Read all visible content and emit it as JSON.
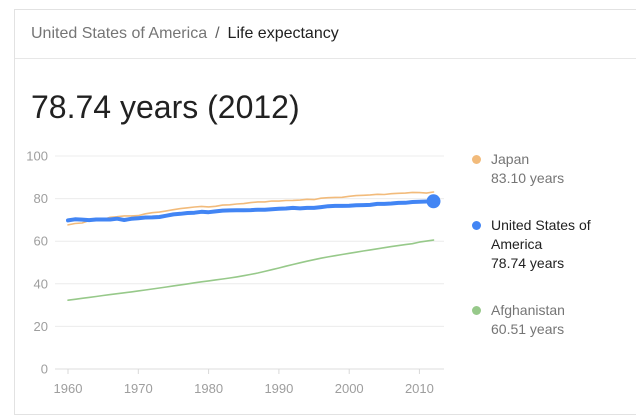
{
  "page": {
    "breadcrumb": {
      "parent": "United States of America",
      "separator": "/",
      "current": "Life expectancy"
    },
    "title": "78.74 years (2012)"
  },
  "legend": {
    "items": [
      {
        "name": "Japan",
        "value": "83.10 years",
        "color": "#f2bb7b",
        "emphasis": false
      },
      {
        "name": "United States of America",
        "value": "78.74 years",
        "color": "#4285f4",
        "emphasis": true
      },
      {
        "name": "Afghanistan",
        "value": "60.51 years",
        "color": "#97c98a",
        "emphasis": false
      }
    ]
  },
  "chart_data": {
    "type": "line",
    "xlabel": "",
    "ylabel": "",
    "ylim": [
      0,
      100
    ],
    "yticks": [
      0,
      20,
      40,
      60,
      80,
      100
    ],
    "xticks": [
      1960,
      1970,
      1980,
      1990,
      2000,
      2010
    ],
    "grid": true,
    "legend_position": "right",
    "years": [
      1960,
      1961,
      1962,
      1963,
      1964,
      1965,
      1966,
      1967,
      1968,
      1969,
      1970,
      1971,
      1972,
      1973,
      1974,
      1975,
      1976,
      1977,
      1978,
      1979,
      1980,
      1981,
      1982,
      1983,
      1984,
      1985,
      1986,
      1987,
      1988,
      1989,
      1990,
      1991,
      1992,
      1993,
      1994,
      1995,
      1996,
      1997,
      1998,
      1999,
      2000,
      2001,
      2002,
      2003,
      2004,
      2005,
      2006,
      2007,
      2008,
      2009,
      2010,
      2011,
      2012
    ],
    "series": [
      {
        "name": "Japan",
        "color": "#f2bb7b",
        "width": 1.6,
        "end_dot": false,
        "values": [
          67.67,
          68.31,
          68.55,
          69.66,
          70.14,
          70.2,
          71.24,
          71.52,
          71.88,
          71.88,
          72.0,
          72.88,
          73.4,
          73.67,
          74.24,
          74.78,
          75.3,
          75.69,
          76.04,
          76.32,
          76.09,
          76.4,
          76.93,
          77.08,
          77.46,
          77.65,
          78.1,
          78.47,
          78.46,
          78.87,
          78.84,
          79.1,
          79.15,
          79.3,
          79.69,
          79.54,
          80.2,
          80.43,
          80.57,
          80.62,
          81.08,
          81.42,
          81.56,
          81.76,
          82.03,
          81.93,
          82.32,
          82.51,
          82.59,
          82.93,
          82.84,
          82.59,
          83.1
        ]
      },
      {
        "name": "United States of America",
        "color": "#4285f4",
        "width": 4,
        "end_dot": true,
        "values": [
          69.77,
          70.27,
          70.12,
          69.92,
          70.17,
          70.21,
          70.21,
          70.56,
          69.95,
          70.51,
          70.81,
          71.11,
          71.16,
          71.36,
          71.96,
          72.6,
          72.86,
          73.25,
          73.36,
          73.8,
          73.61,
          74.01,
          74.36,
          74.46,
          74.56,
          74.56,
          74.61,
          74.77,
          74.76,
          75.02,
          75.21,
          75.37,
          75.62,
          75.42,
          75.62,
          75.62,
          76.03,
          76.43,
          76.58,
          76.58,
          76.64,
          76.84,
          76.94,
          77.04,
          77.49,
          77.49,
          77.69,
          77.99,
          78.04,
          78.39,
          78.54,
          78.64,
          78.74
        ]
      },
      {
        "name": "Afghanistan",
        "color": "#97c98a",
        "width": 1.6,
        "end_dot": false,
        "values": [
          32.29,
          32.74,
          33.18,
          33.62,
          34.06,
          34.49,
          34.92,
          35.35,
          35.78,
          36.22,
          36.66,
          37.11,
          37.57,
          38.04,
          38.52,
          39.0,
          39.49,
          39.97,
          40.45,
          40.92,
          41.37,
          41.82,
          42.27,
          42.74,
          43.25,
          43.8,
          44.41,
          45.09,
          45.82,
          46.6,
          47.41,
          48.24,
          49.06,
          49.86,
          50.62,
          51.33,
          52.0,
          52.62,
          53.2,
          53.77,
          54.31,
          54.85,
          55.39,
          55.92,
          56.45,
          56.97,
          57.46,
          57.94,
          58.39,
          58.82,
          59.6,
          60.07,
          60.51
        ]
      }
    ]
  }
}
